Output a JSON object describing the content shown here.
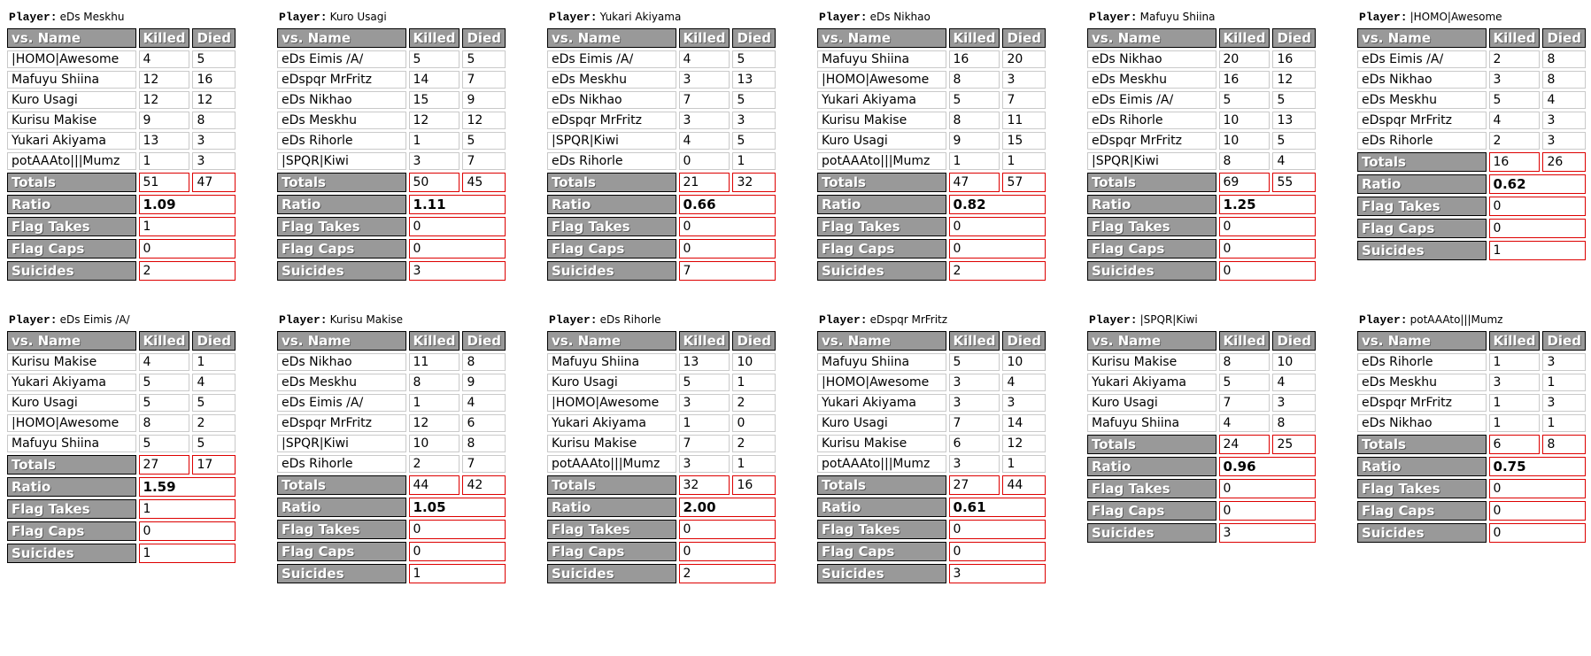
{
  "labels": {
    "player_prefix": "Player:",
    "col_name": "vs. Name",
    "col_killed": "Killed",
    "col_died": "Died",
    "totals": "Totals",
    "ratio": "Ratio",
    "flag_takes": "Flag Takes",
    "flag_caps": "Flag Caps",
    "suicides": "Suicides"
  },
  "colors": {
    "header_bg": "#999999",
    "header_text": "#ffffff",
    "data_cell_border": "#c9c9c9",
    "summary_value_border": "#dd0000",
    "header_cell_border": "#000000"
  },
  "players": [
    {
      "name": "eDs Meskhu",
      "rows": [
        {
          "vs": "|HOMO|Awesome",
          "killed": 4,
          "died": 5
        },
        {
          "vs": "Mafuyu Shiina",
          "killed": 12,
          "died": 16
        },
        {
          "vs": "Kuro Usagi",
          "killed": 12,
          "died": 12
        },
        {
          "vs": "Kurisu Makise",
          "killed": 9,
          "died": 8
        },
        {
          "vs": "Yukari Akiyama",
          "killed": 13,
          "died": 3
        },
        {
          "vs": "potAAAto|||Mumz",
          "killed": 1,
          "died": 3
        }
      ],
      "totals_killed": 51,
      "totals_died": 47,
      "ratio": "1.09",
      "flag_takes": 1,
      "flag_caps": 0,
      "suicides": 2
    },
    {
      "name": "Kuro Usagi",
      "rows": [
        {
          "vs": "eDs Eimis /A/",
          "killed": 5,
          "died": 5
        },
        {
          "vs": "eDspqr MrFritz",
          "killed": 14,
          "died": 7
        },
        {
          "vs": "eDs Nikhao",
          "killed": 15,
          "died": 9
        },
        {
          "vs": "eDs Meskhu",
          "killed": 12,
          "died": 12
        },
        {
          "vs": "eDs Rihorle",
          "killed": 1,
          "died": 5
        },
        {
          "vs": "|SPQR|Kiwi",
          "killed": 3,
          "died": 7
        }
      ],
      "totals_killed": 50,
      "totals_died": 45,
      "ratio": "1.11",
      "flag_takes": 0,
      "flag_caps": 0,
      "suicides": 3
    },
    {
      "name": "Yukari Akiyama",
      "rows": [
        {
          "vs": "eDs Eimis /A/",
          "killed": 4,
          "died": 5
        },
        {
          "vs": "eDs Meskhu",
          "killed": 3,
          "died": 13
        },
        {
          "vs": "eDs Nikhao",
          "killed": 7,
          "died": 5
        },
        {
          "vs": "eDspqr MrFritz",
          "killed": 3,
          "died": 3
        },
        {
          "vs": "|SPQR|Kiwi",
          "killed": 4,
          "died": 5
        },
        {
          "vs": "eDs Rihorle",
          "killed": 0,
          "died": 1
        }
      ],
      "totals_killed": 21,
      "totals_died": 32,
      "ratio": "0.66",
      "flag_takes": 0,
      "flag_caps": 0,
      "suicides": 7
    },
    {
      "name": "eDs Nikhao",
      "rows": [
        {
          "vs": "Mafuyu Shiina",
          "killed": 16,
          "died": 20
        },
        {
          "vs": "|HOMO|Awesome",
          "killed": 8,
          "died": 3
        },
        {
          "vs": "Yukari Akiyama",
          "killed": 5,
          "died": 7
        },
        {
          "vs": "Kurisu Makise",
          "killed": 8,
          "died": 11
        },
        {
          "vs": "Kuro Usagi",
          "killed": 9,
          "died": 15
        },
        {
          "vs": "potAAAto|||Mumz",
          "killed": 1,
          "died": 1
        }
      ],
      "totals_killed": 47,
      "totals_died": 57,
      "ratio": "0.82",
      "flag_takes": 0,
      "flag_caps": 0,
      "suicides": 2
    },
    {
      "name": "Mafuyu Shiina",
      "rows": [
        {
          "vs": "eDs Nikhao",
          "killed": 20,
          "died": 16
        },
        {
          "vs": "eDs Meskhu",
          "killed": 16,
          "died": 12
        },
        {
          "vs": "eDs Eimis /A/",
          "killed": 5,
          "died": 5
        },
        {
          "vs": "eDs Rihorle",
          "killed": 10,
          "died": 13
        },
        {
          "vs": "eDspqr MrFritz",
          "killed": 10,
          "died": 5
        },
        {
          "vs": "|SPQR|Kiwi",
          "killed": 8,
          "died": 4
        }
      ],
      "totals_killed": 69,
      "totals_died": 55,
      "ratio": "1.25",
      "flag_takes": 0,
      "flag_caps": 0,
      "suicides": 0
    },
    {
      "name": "|HOMO|Awesome",
      "rows": [
        {
          "vs": "eDs Eimis /A/",
          "killed": 2,
          "died": 8
        },
        {
          "vs": "eDs Nikhao",
          "killed": 3,
          "died": 8
        },
        {
          "vs": "eDs Meskhu",
          "killed": 5,
          "died": 4
        },
        {
          "vs": "eDspqr MrFritz",
          "killed": 4,
          "died": 3
        },
        {
          "vs": "eDs Rihorle",
          "killed": 2,
          "died": 3
        }
      ],
      "totals_killed": 16,
      "totals_died": 26,
      "ratio": "0.62",
      "flag_takes": 0,
      "flag_caps": 0,
      "suicides": 1
    },
    {
      "name": "eDs Eimis /A/",
      "rows": [
        {
          "vs": "Kurisu Makise",
          "killed": 4,
          "died": 1
        },
        {
          "vs": "Yukari Akiyama",
          "killed": 5,
          "died": 4
        },
        {
          "vs": "Kuro Usagi",
          "killed": 5,
          "died": 5
        },
        {
          "vs": "|HOMO|Awesome",
          "killed": 8,
          "died": 2
        },
        {
          "vs": "Mafuyu Shiina",
          "killed": 5,
          "died": 5
        }
      ],
      "totals_killed": 27,
      "totals_died": 17,
      "ratio": "1.59",
      "flag_takes": 1,
      "flag_caps": 0,
      "suicides": 1
    },
    {
      "name": "Kurisu Makise",
      "rows": [
        {
          "vs": "eDs Nikhao",
          "killed": 11,
          "died": 8
        },
        {
          "vs": "eDs Meskhu",
          "killed": 8,
          "died": 9
        },
        {
          "vs": "eDs Eimis /A/",
          "killed": 1,
          "died": 4
        },
        {
          "vs": "eDspqr MrFritz",
          "killed": 12,
          "died": 6
        },
        {
          "vs": "|SPQR|Kiwi",
          "killed": 10,
          "died": 8
        },
        {
          "vs": "eDs Rihorle",
          "killed": 2,
          "died": 7
        }
      ],
      "totals_killed": 44,
      "totals_died": 42,
      "ratio": "1.05",
      "flag_takes": 0,
      "flag_caps": 0,
      "suicides": 1
    },
    {
      "name": "eDs Rihorle",
      "rows": [
        {
          "vs": "Mafuyu Shiina",
          "killed": 13,
          "died": 10
        },
        {
          "vs": "Kuro Usagi",
          "killed": 5,
          "died": 1
        },
        {
          "vs": "|HOMO|Awesome",
          "killed": 3,
          "died": 2
        },
        {
          "vs": "Yukari Akiyama",
          "killed": 1,
          "died": 0
        },
        {
          "vs": "Kurisu Makise",
          "killed": 7,
          "died": 2
        },
        {
          "vs": "potAAAto|||Mumz",
          "killed": 3,
          "died": 1
        }
      ],
      "totals_killed": 32,
      "totals_died": 16,
      "ratio": "2.00",
      "flag_takes": 0,
      "flag_caps": 0,
      "suicides": 2
    },
    {
      "name": "eDspqr MrFritz",
      "rows": [
        {
          "vs": "Mafuyu Shiina",
          "killed": 5,
          "died": 10
        },
        {
          "vs": "|HOMO|Awesome",
          "killed": 3,
          "died": 4
        },
        {
          "vs": "Yukari Akiyama",
          "killed": 3,
          "died": 3
        },
        {
          "vs": "Kuro Usagi",
          "killed": 7,
          "died": 14
        },
        {
          "vs": "Kurisu Makise",
          "killed": 6,
          "died": 12
        },
        {
          "vs": "potAAAto|||Mumz",
          "killed": 3,
          "died": 1
        }
      ],
      "totals_killed": 27,
      "totals_died": 44,
      "ratio": "0.61",
      "flag_takes": 0,
      "flag_caps": 0,
      "suicides": 3
    },
    {
      "name": "|SPQR|Kiwi",
      "rows": [
        {
          "vs": "Kurisu Makise",
          "killed": 8,
          "died": 10
        },
        {
          "vs": "Yukari Akiyama",
          "killed": 5,
          "died": 4
        },
        {
          "vs": "Kuro Usagi",
          "killed": 7,
          "died": 3
        },
        {
          "vs": "Mafuyu Shiina",
          "killed": 4,
          "died": 8
        }
      ],
      "totals_killed": 24,
      "totals_died": 25,
      "ratio": "0.96",
      "flag_takes": 0,
      "flag_caps": 0,
      "suicides": 3
    },
    {
      "name": "potAAAto|||Mumz",
      "rows": [
        {
          "vs": "eDs Rihorle",
          "killed": 1,
          "died": 3
        },
        {
          "vs": "eDs Meskhu",
          "killed": 3,
          "died": 1
        },
        {
          "vs": "eDspqr MrFritz",
          "killed": 1,
          "died": 3
        },
        {
          "vs": "eDs Nikhao",
          "killed": 1,
          "died": 1
        }
      ],
      "totals_killed": 6,
      "totals_died": 8,
      "ratio": "0.75",
      "flag_takes": 0,
      "flag_caps": 0,
      "suicides": 0
    }
  ]
}
